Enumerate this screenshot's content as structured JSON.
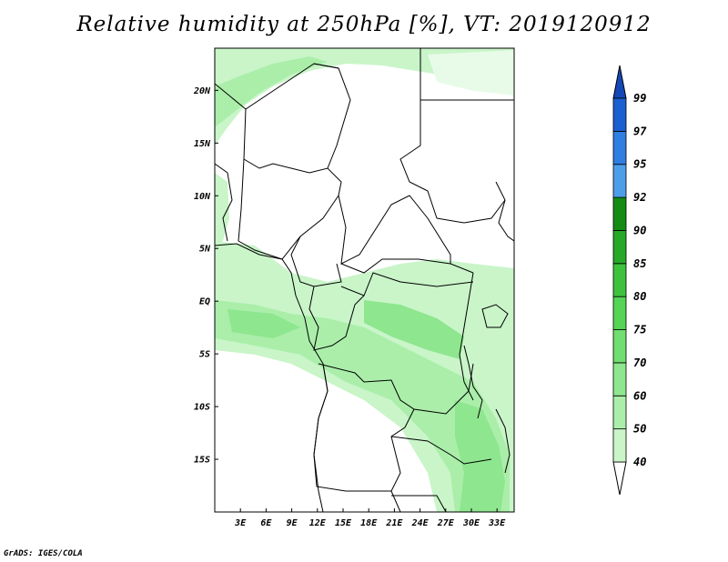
{
  "title": "Relative humidity at 250hPa [%], VT: 2019120912",
  "credit": "GrADS: IGES/COLA",
  "map": {
    "lat_labels": [
      "20N",
      "15N",
      "10N",
      "5N",
      "EQ",
      "5S",
      "10S",
      "15S"
    ],
    "lon_labels": [
      "3E",
      "6E",
      "9E",
      "12E",
      "15E",
      "18E",
      "21E",
      "24E",
      "27E",
      "30E",
      "33E"
    ],
    "lat_range": [
      -20,
      24
    ],
    "lon_range": [
      0,
      35
    ]
  },
  "colorbar": {
    "labels": [
      "40",
      "50",
      "60",
      "70",
      "75",
      "80",
      "85",
      "90",
      "92",
      "95",
      "97",
      "99"
    ],
    "colors": [
      "#e8fbe8",
      "#c9f5c9",
      "#aaeeaa",
      "#8ee68e",
      "#70de70",
      "#55d455",
      "#3ec23e",
      "#28a828",
      "#148c14",
      "#4d9ee8",
      "#2f7ee0",
      "#1c5fd0",
      "#1448b8"
    ]
  }
}
